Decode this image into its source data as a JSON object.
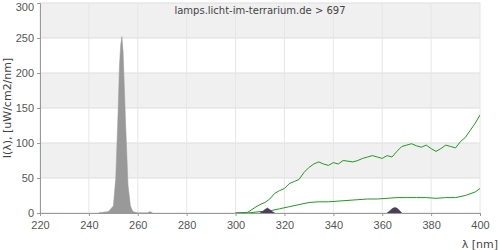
{
  "chart_data": {
    "type": "line",
    "title": "lamps.licht-im-terrarium.de > 697",
    "x_label": "λ [nm]",
    "y_label": "I(λ), [uW/cm2/nm]",
    "xlim": [
      220,
      400
    ],
    "xticks": [
      220,
      240,
      260,
      280,
      300,
      320,
      340,
      360,
      380,
      400
    ],
    "ylim": [
      0,
      300
    ],
    "yticks": [
      0,
      50,
      100,
      150,
      200,
      250,
      300
    ],
    "grid": true,
    "series": [
      {
        "type": "area",
        "color": "#999999",
        "x": [
          244,
          246,
          248,
          250,
          251,
          252,
          252.5,
          253,
          253.5,
          254,
          254.5,
          255,
          256,
          257,
          258,
          260,
          264,
          265,
          266
        ],
        "values": [
          0,
          1,
          2,
          10,
          50,
          150,
          210,
          240,
          252,
          230,
          180,
          130,
          40,
          10,
          2,
          0,
          0,
          2,
          0
        ]
      },
      {
        "type": "line",
        "color": "#1f9a1f",
        "x": [
          300,
          305,
          308,
          310,
          312,
          314,
          316,
          318,
          320,
          322,
          324,
          326,
          328,
          330,
          332,
          334,
          336,
          338,
          340,
          342,
          344,
          346,
          348,
          350,
          352,
          354,
          356,
          358,
          360,
          362,
          364,
          366,
          368,
          370,
          372,
          374,
          376,
          378,
          380,
          382,
          384,
          386,
          388,
          390,
          392,
          394,
          396,
          398,
          400
        ],
        "values": [
          0,
          1,
          8,
          12,
          15,
          20,
          28,
          32,
          35,
          42,
          45,
          48,
          58,
          65,
          70,
          73,
          70,
          68,
          72,
          70,
          75,
          74,
          73,
          75,
          78,
          80,
          82,
          80,
          78,
          82,
          80,
          88,
          95,
          97,
          99,
          96,
          94,
          97,
          92,
          88,
          92,
          97,
          95,
          93,
          102,
          108,
          118,
          128,
          140
        ]
      },
      {
        "type": "line",
        "color": "#1f9a1f",
        "x": [
          300,
          305,
          310,
          314,
          318,
          322,
          326,
          330,
          334,
          338,
          342,
          346,
          350,
          354,
          358,
          362,
          366,
          370,
          374,
          378,
          382,
          386,
          390,
          394,
          398,
          400
        ],
        "values": [
          0,
          0,
          2,
          3,
          6,
          9,
          12,
          15,
          16,
          16,
          17,
          18,
          19,
          20,
          20,
          21,
          22,
          22,
          22,
          22,
          21,
          22,
          22,
          25,
          30,
          35
        ]
      },
      {
        "type": "area",
        "color": "#4d3f5c",
        "x": [
          310,
          311,
          312,
          313,
          314,
          315,
          316
        ],
        "values": [
          0,
          2,
          5,
          7,
          5,
          2,
          0
        ]
      },
      {
        "type": "area",
        "color": "#4d3f5c",
        "x": [
          362,
          363,
          364,
          365,
          366,
          367,
          368
        ],
        "values": [
          0,
          3,
          6,
          8,
          7,
          4,
          0
        ]
      }
    ]
  }
}
